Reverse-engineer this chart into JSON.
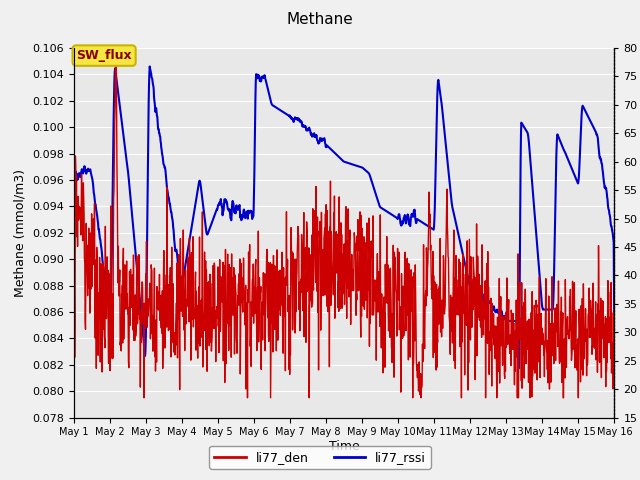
{
  "title": "Methane",
  "xlabel": "Time",
  "ylabel_left": "Methane (mmol/m3)",
  "ylabel_right": "RSSI (%)",
  "ylim_left": [
    0.078,
    0.106
  ],
  "ylim_right": [
    15,
    80
  ],
  "yticks_left": [
    0.078,
    0.08,
    0.082,
    0.084,
    0.086,
    0.088,
    0.09,
    0.092,
    0.094,
    0.096,
    0.098,
    0.1,
    0.102,
    0.104,
    0.106
  ],
  "yticks_right": [
    15,
    20,
    25,
    30,
    35,
    40,
    45,
    50,
    55,
    60,
    65,
    70,
    75,
    80
  ],
  "xtick_labels": [
    "May 1",
    "May 2",
    "May 3",
    "May 4",
    "May 5",
    "May 6",
    "May 7",
    "May 8",
    "May 9",
    "May 10",
    "May 11",
    "May 12",
    "May 13",
    "May 14",
    "May 15",
    "May 16"
  ],
  "legend_labels": [
    "li77_den",
    "li77_rssi"
  ],
  "legend_colors": [
    "#cc0000",
    "#0000cc"
  ],
  "annotation_text": "SW_flux",
  "annotation_bg": "#f5e642",
  "annotation_border": "#c8b400",
  "annotation_text_color": "#880000",
  "figure_bg": "#f0f0f0",
  "plot_bg": "#e8e8e8",
  "grid_color": "#ffffff",
  "red_color": "#cc0000",
  "blue_color": "#0000cc",
  "red_lw": 1.0,
  "blue_lw": 1.5
}
